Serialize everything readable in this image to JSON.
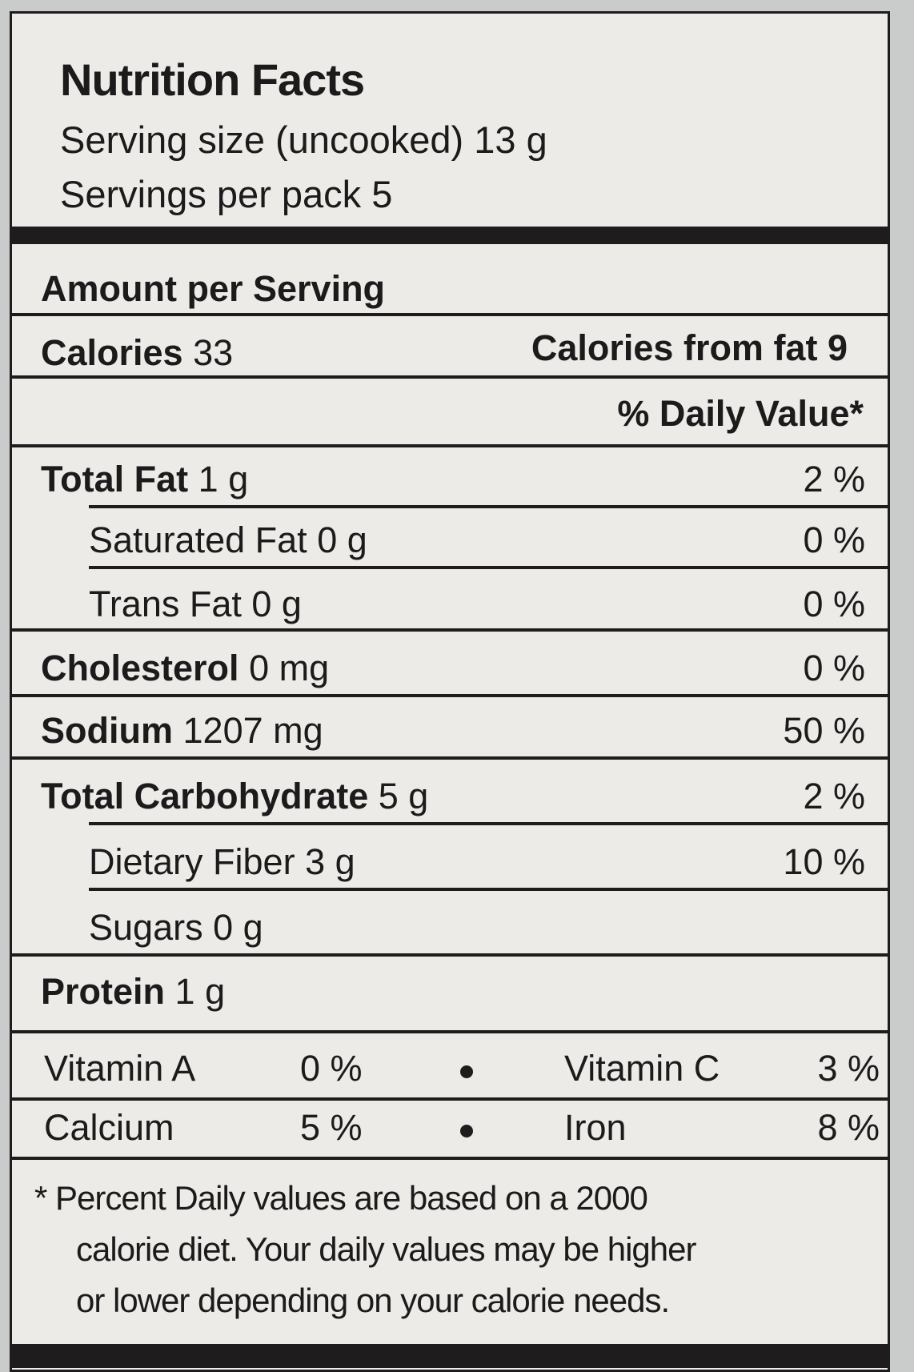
{
  "title": "Nutrition Facts",
  "serving_size": "Serving size (uncooked) 13 g",
  "servings": "Servings per pack 5",
  "amount_header": "Amount per Serving",
  "calories": {
    "label": "Calories",
    "value": "33",
    "fat_label": "Calories from fat",
    "fat_value": "9"
  },
  "dv_header": "% Daily Value*",
  "nutrients": [
    {
      "name": "Total Fat",
      "amount": "1 g",
      "dv": "2 %"
    },
    {
      "name": "Saturated Fat",
      "amount": "0 g",
      "dv": "0 %"
    },
    {
      "name": "Trans Fat",
      "amount": "0 g",
      "dv": "0 %"
    },
    {
      "name": "Cholesterol",
      "amount": "0 mg",
      "dv": "0 %"
    },
    {
      "name": "Sodium",
      "amount": "1207 mg",
      "dv": "50 %"
    },
    {
      "name": "Total Carbohydrate",
      "amount": "5 g",
      "dv": "2 %"
    },
    {
      "name": "Dietary Fiber",
      "amount": "3 g",
      "dv": "10 %"
    },
    {
      "name": "Sugars",
      "amount": "0 g"
    },
    {
      "name": "Protein",
      "amount": "1 g"
    }
  ],
  "vitamins": [
    {
      "a": "Vitamin A",
      "av": "0 %",
      "b": "Vitamin C",
      "bv": "3 %"
    },
    {
      "a": "Calcium",
      "av": "5 %",
      "b": "Iron",
      "bv": "8 %"
    }
  ],
  "footnote": [
    "* Percent Daily values are based on a 2000",
    "calorie diet. Your daily values may be higher",
    "or lower depending on your calorie needs."
  ]
}
